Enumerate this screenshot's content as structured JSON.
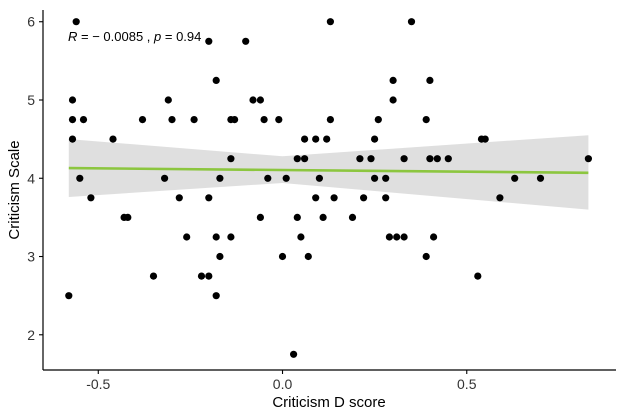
{
  "chart_data": {
    "type": "scatter",
    "title": "",
    "xlabel": "Criticism D score",
    "ylabel": "Criticism Scale",
    "xlim": [
      -0.65,
      0.905
    ],
    "ylim": [
      1.55,
      6.15
    ],
    "xticks": [
      -0.5,
      0.0,
      0.5
    ],
    "xtick_labels": [
      "-0.5",
      "0.0",
      "0.5"
    ],
    "yticks": [
      2,
      3,
      4,
      5,
      6
    ],
    "ytick_labels": [
      "2",
      "3",
      "4",
      "5",
      "6"
    ],
    "grid": false,
    "annotation": {
      "r_label": "R",
      "r_value": " = − 0.0085 , ",
      "p_label": "p",
      "p_value": " = 0.94"
    },
    "regression": {
      "x": [
        -0.58,
        0.83
      ],
      "y": [
        4.13,
        4.07
      ],
      "color": "#8cc63f",
      "band_color": "#d9d9d9",
      "band": [
        {
          "x": -0.58,
          "lo": 3.76,
          "hi": 4.5
        },
        {
          "x": 0.0,
          "lo": 3.94,
          "hi": 4.28
        },
        {
          "x": 0.83,
          "lo": 3.6,
          "hi": 4.55
        }
      ]
    },
    "point_color": "#000000",
    "points": [
      [
        -0.58,
        2.5
      ],
      [
        -0.57,
        5.0
      ],
      [
        -0.57,
        4.75
      ],
      [
        -0.57,
        4.5
      ],
      [
        -0.56,
        6.0
      ],
      [
        -0.55,
        4.0
      ],
      [
        -0.54,
        4.75
      ],
      [
        -0.52,
        3.75
      ],
      [
        -0.46,
        4.5
      ],
      [
        -0.43,
        3.5
      ],
      [
        -0.42,
        3.5
      ],
      [
        -0.38,
        4.75
      ],
      [
        -0.35,
        2.75
      ],
      [
        -0.32,
        4.0
      ],
      [
        -0.31,
        5.0
      ],
      [
        -0.3,
        4.75
      ],
      [
        -0.28,
        3.75
      ],
      [
        -0.26,
        3.25
      ],
      [
        -0.24,
        4.75
      ],
      [
        -0.22,
        2.75
      ],
      [
        -0.2,
        2.75
      ],
      [
        -0.2,
        5.75
      ],
      [
        -0.2,
        3.75
      ],
      [
        -0.18,
        5.25
      ],
      [
        -0.18,
        3.25
      ],
      [
        -0.18,
        2.5
      ],
      [
        -0.17,
        4.0
      ],
      [
        -0.17,
        3.0
      ],
      [
        -0.14,
        3.25
      ],
      [
        -0.14,
        4.75
      ],
      [
        -0.13,
        4.75
      ],
      [
        -0.14,
        4.25
      ],
      [
        -0.1,
        5.75
      ],
      [
        -0.08,
        5.0
      ],
      [
        -0.06,
        5.0
      ],
      [
        -0.06,
        3.5
      ],
      [
        -0.05,
        4.75
      ],
      [
        -0.04,
        4.0
      ],
      [
        -0.01,
        4.75
      ],
      [
        0.0,
        3.0
      ],
      [
        0.01,
        4.0
      ],
      [
        0.03,
        1.75
      ],
      [
        0.04,
        3.5
      ],
      [
        0.05,
        3.25
      ],
      [
        0.04,
        4.25
      ],
      [
        0.06,
        4.5
      ],
      [
        0.06,
        4.25
      ],
      [
        0.07,
        3.0
      ],
      [
        0.09,
        4.5
      ],
      [
        0.09,
        3.75
      ],
      [
        0.1,
        4.0
      ],
      [
        0.11,
        3.5
      ],
      [
        0.12,
        4.5
      ],
      [
        0.13,
        6.0
      ],
      [
        0.14,
        3.75
      ],
      [
        0.13,
        4.75
      ],
      [
        0.19,
        3.5
      ],
      [
        0.21,
        4.25
      ],
      [
        0.22,
        3.75
      ],
      [
        0.24,
        4.25
      ],
      [
        0.25,
        4.5
      ],
      [
        0.25,
        4.0
      ],
      [
        0.26,
        4.75
      ],
      [
        0.28,
        3.75
      ],
      [
        0.28,
        4.0
      ],
      [
        0.29,
        3.25
      ],
      [
        0.3,
        5.25
      ],
      [
        0.3,
        5.0
      ],
      [
        0.31,
        3.25
      ],
      [
        0.35,
        6.0
      ],
      [
        0.33,
        4.25
      ],
      [
        0.33,
        3.25
      ],
      [
        0.39,
        3.0
      ],
      [
        0.39,
        4.75
      ],
      [
        0.4,
        4.25
      ],
      [
        0.4,
        5.25
      ],
      [
        0.41,
        3.25
      ],
      [
        0.42,
        4.25
      ],
      [
        0.45,
        4.25
      ],
      [
        0.53,
        2.75
      ],
      [
        0.54,
        4.5
      ],
      [
        0.55,
        4.5
      ],
      [
        0.59,
        3.75
      ],
      [
        0.63,
        4.0
      ],
      [
        0.7,
        4.0
      ],
      [
        0.83,
        4.25
      ]
    ]
  }
}
